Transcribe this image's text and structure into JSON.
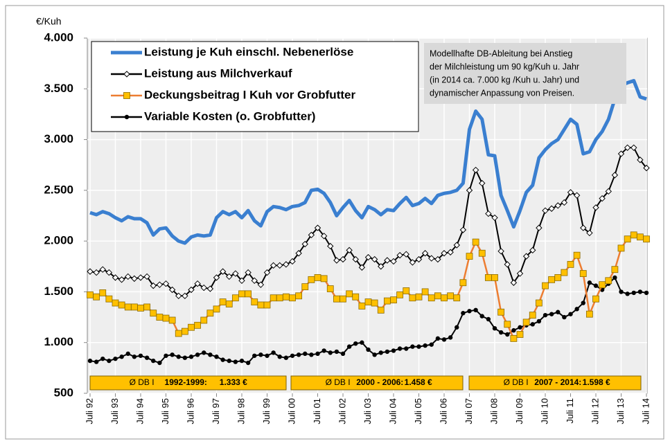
{
  "chart_data": {
    "type": "line",
    "y_label": "€/Kuh",
    "ylim": [
      500,
      4000
    ],
    "yticks": [
      500,
      {
        "value": 1000,
        "label": "1.000"
      },
      {
        "value": 1500,
        "label": "1.500"
      },
      {
        "value": 2000,
        "label": "2.000"
      },
      {
        "value": 2500,
        "label": "2.500"
      },
      {
        "value": 3000,
        "label": "3.000"
      },
      {
        "value": 3500,
        "label": "3.500"
      },
      {
        "value": 4000,
        "label": "4.000"
      }
    ],
    "grid": true,
    "legend": "upper left",
    "categories": [
      "Juli 92",
      null,
      null,
      null,
      "Juli 93",
      null,
      null,
      null,
      "Juli 94",
      null,
      null,
      null,
      "Juli 95",
      null,
      null,
      null,
      "Juli 96",
      null,
      null,
      null,
      "Juli 97",
      null,
      null,
      null,
      "Juli 98",
      null,
      null,
      null,
      "Juli 99",
      null,
      null,
      null,
      "Juli 00",
      null,
      null,
      null,
      "Juli 01",
      null,
      null,
      null,
      "Juli 02",
      null,
      null,
      null,
      "Juli 03",
      null,
      null,
      null,
      "Juli 04",
      null,
      null,
      null,
      "Juli 05",
      null,
      null,
      null,
      "Juli 06",
      null,
      null,
      null,
      "Juli 07",
      null,
      null,
      null,
      "Juli 08",
      null,
      null,
      null,
      "Juli 09",
      null,
      null,
      null,
      "Juli 10",
      null,
      null,
      null,
      "Juli 11",
      null,
      null,
      null,
      "Juli 12",
      null,
      null,
      null,
      "Juli 13",
      null,
      null,
      null,
      "Juli 14"
    ],
    "series": [
      {
        "name": "Leistung je Kuh einschl. Nebenerlöse",
        "color": "#3a7fd0",
        "marker": "none",
        "values": [
          2280,
          2260,
          2290,
          2270,
          2230,
          2200,
          2240,
          2220,
          2220,
          2180,
          2060,
          2120,
          2130,
          2050,
          2000,
          1980,
          2040,
          2060,
          2050,
          2060,
          2230,
          2290,
          2260,
          2290,
          2230,
          2300,
          2200,
          2150,
          2290,
          2340,
          2330,
          2310,
          2340,
          2350,
          2380,
          2500,
          2510,
          2470,
          2380,
          2250,
          2330,
          2400,
          2300,
          2230,
          2340,
          2310,
          2260,
          2310,
          2300,
          2370,
          2430,
          2350,
          2370,
          2420,
          2370,
          2450,
          2470,
          2480,
          2500,
          2570,
          3100,
          3280,
          3200,
          2850,
          2840,
          2450,
          2300,
          2140,
          2300,
          2480,
          2550,
          2820,
          2900,
          2960,
          3000,
          3100,
          3200,
          3150,
          2860,
          2880,
          3000,
          3080,
          3200,
          3400,
          3530,
          3560,
          3580,
          3420,
          3400
        ]
      },
      {
        "name": "Leistung aus Milchverkauf",
        "color": "#000000",
        "marker": "diamond",
        "marker_color": "#ffffff",
        "values": [
          1700,
          1690,
          1720,
          1690,
          1640,
          1620,
          1650,
          1630,
          1640,
          1650,
          1560,
          1570,
          1580,
          1520,
          1460,
          1460,
          1520,
          1580,
          1540,
          1530,
          1640,
          1700,
          1650,
          1680,
          1610,
          1690,
          1610,
          1570,
          1690,
          1760,
          1760,
          1770,
          1800,
          1880,
          1970,
          2060,
          2130,
          2050,
          1950,
          1810,
          1820,
          1910,
          1820,
          1740,
          1840,
          1820,
          1750,
          1810,
          1800,
          1860,
          1870,
          1790,
          1820,
          1880,
          1830,
          1820,
          1880,
          1890,
          1960,
          2110,
          2500,
          2700,
          2570,
          2270,
          2230,
          1900,
          1770,
          1590,
          1680,
          1850,
          1910,
          2130,
          2300,
          2320,
          2350,
          2380,
          2480,
          2450,
          2130,
          2080,
          2330,
          2420,
          2490,
          2650,
          2860,
          2920,
          2920,
          2800,
          2720
        ]
      },
      {
        "name": "Deckungsbeitrag I Kuh vor Grobfutter",
        "color": "#ed7d31",
        "marker": "square",
        "marker_color": "#ffc000",
        "values": [
          1470,
          1450,
          1490,
          1430,
          1390,
          1370,
          1350,
          1350,
          1340,
          1350,
          1290,
          1250,
          1240,
          1220,
          1090,
          1110,
          1150,
          1170,
          1220,
          1290,
          1330,
          1400,
          1380,
          1440,
          1480,
          1480,
          1400,
          1370,
          1370,
          1440,
          1440,
          1450,
          1440,
          1460,
          1550,
          1620,
          1640,
          1630,
          1530,
          1430,
          1430,
          1480,
          1450,
          1360,
          1400,
          1390,
          1320,
          1410,
          1420,
          1470,
          1510,
          1440,
          1450,
          1500,
          1440,
          1460,
          1440,
          1460,
          1440,
          1590,
          1850,
          1990,
          1880,
          1640,
          1640,
          1300,
          1180,
          1040,
          1080,
          1200,
          1270,
          1390,
          1560,
          1620,
          1640,
          1690,
          1770,
          1860,
          1680,
          1280,
          1430,
          1570,
          1610,
          1720,
          1930,
          2020,
          2060,
          2040,
          2020
        ]
      },
      {
        "name": "Variable Kosten (o. Grobfutter)",
        "color": "#000000",
        "marker": "circle",
        "marker_color": "#000000",
        "values": [
          820,
          810,
          840,
          820,
          840,
          860,
          890,
          860,
          870,
          850,
          820,
          800,
          870,
          880,
          860,
          850,
          860,
          880,
          900,
          880,
          860,
          830,
          820,
          810,
          820,
          800,
          870,
          880,
          870,
          900,
          860,
          850,
          870,
          880,
          890,
          880,
          890,
          920,
          900,
          910,
          890,
          960,
          990,
          1000,
          930,
          880,
          900,
          910,
          920,
          940,
          940,
          960,
          960,
          970,
          980,
          1040,
          1030,
          1050,
          1150,
          1290,
          1310,
          1320,
          1260,
          1230,
          1140,
          1100,
          1080,
          1120,
          1150,
          1170,
          1180,
          1210,
          1270,
          1280,
          1300,
          1250,
          1280,
          1330,
          1390,
          1590,
          1560,
          1520,
          1580,
          1640,
          1500,
          1480,
          1490,
          1500,
          1490
        ]
      }
    ],
    "note": [
      "Modellhafte DB-Ableitung bei Anstieg",
      "der Milchleistung um 90 kg/Kuh u. Jahr",
      "(in 2014 ca.  7.000 kg /Kuh u. Jahr) und",
      "dynamischer Anpassung von Preisen."
    ],
    "db_boxes": [
      {
        "label": "Ø DB I",
        "period": "1992-1999:",
        "amount": "1.333 €"
      },
      {
        "label": "Ø DB I",
        "period": "2000 - 2006:",
        "amount": "1.458 €"
      },
      {
        "label": "Ø DB I",
        "period": "2007 - 2014:",
        "amount": "1.598 €"
      }
    ]
  }
}
